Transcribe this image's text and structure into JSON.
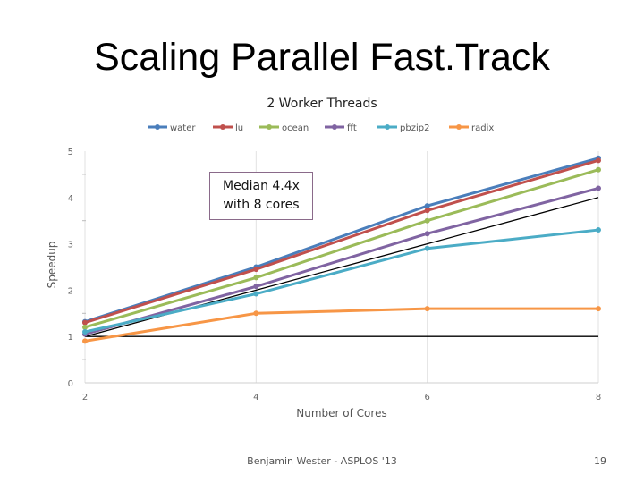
{
  "slide": {
    "title": "Scaling Parallel Fast.Track",
    "footer": "Benjamin Wester - ASPLOS '13",
    "page_number": "19"
  },
  "callout": {
    "line1": "Median 4.4x",
    "line2": "with 8 cores"
  },
  "chart_data": {
    "type": "line",
    "title": "2 Worker Threads",
    "xlabel": "Number of Cores",
    "ylabel": "Speedup",
    "x": [
      2,
      4,
      6,
      8
    ],
    "xlim": [
      2,
      8
    ],
    "ylim": [
      0,
      5
    ],
    "xticks": [
      2,
      4,
      6,
      8
    ],
    "yticks": [
      0,
      1,
      2,
      3,
      4,
      5
    ],
    "legend_position": "top",
    "grid": "vertical",
    "series": [
      {
        "name": "water",
        "color": "#4a7ebb",
        "values": [
          1.32,
          2.5,
          3.82,
          4.85
        ]
      },
      {
        "name": "lu",
        "color": "#c0504d",
        "values": [
          1.3,
          2.45,
          3.72,
          4.8
        ]
      },
      {
        "name": "ocean",
        "color": "#9bbb59",
        "values": [
          1.2,
          2.27,
          3.5,
          4.6
        ]
      },
      {
        "name": "fft",
        "color": "#8064a2",
        "values": [
          1.05,
          2.08,
          3.22,
          4.2
        ]
      },
      {
        "name": "pbzip2",
        "color": "#4bacc6",
        "values": [
          1.1,
          1.92,
          2.9,
          3.3
        ]
      },
      {
        "name": "radix",
        "color": "#f79646",
        "values": [
          0.9,
          1.5,
          1.6,
          1.6
        ]
      }
    ],
    "reference_lines": [
      {
        "color": "#000000",
        "values": [
          1,
          2,
          3,
          4
        ]
      },
      {
        "color": "#000000",
        "values": [
          1,
          1,
          1,
          1
        ]
      }
    ]
  }
}
